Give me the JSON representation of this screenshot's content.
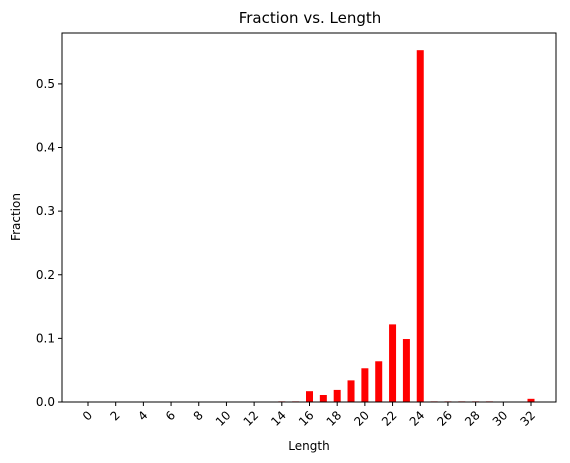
{
  "chart_data": {
    "type": "bar",
    "title": "Fraction vs. Length",
    "xlabel": "Length",
    "ylabel": "Fraction",
    "x": [
      0,
      1,
      2,
      3,
      4,
      5,
      6,
      7,
      8,
      9,
      10,
      11,
      12,
      13,
      14,
      15,
      16,
      17,
      18,
      19,
      20,
      21,
      22,
      23,
      24,
      25,
      26,
      27,
      28,
      29,
      30,
      31,
      32
    ],
    "values": [
      0,
      0,
      0,
      0,
      0,
      0,
      0,
      0,
      0,
      0,
      0,
      0,
      0,
      0,
      0.001,
      0.001,
      0.017,
      0.011,
      0.019,
      0.034,
      0.053,
      0.064,
      0.122,
      0.099,
      0.553,
      0.001,
      0.001,
      0.001,
      0.001,
      0.001,
      0,
      0,
      0.005
    ],
    "xticks": [
      "0",
      "2",
      "4",
      "6",
      "8",
      "10",
      "12",
      "14",
      "16",
      "18",
      "20",
      "22",
      "24",
      "26",
      "28",
      "30",
      "32"
    ],
    "yticks": [
      "0.0",
      "0.1",
      "0.2",
      "0.3",
      "0.4",
      "0.5"
    ],
    "ylim": [
      0,
      0.58
    ],
    "color": "#ff0000",
    "grid": false
  }
}
